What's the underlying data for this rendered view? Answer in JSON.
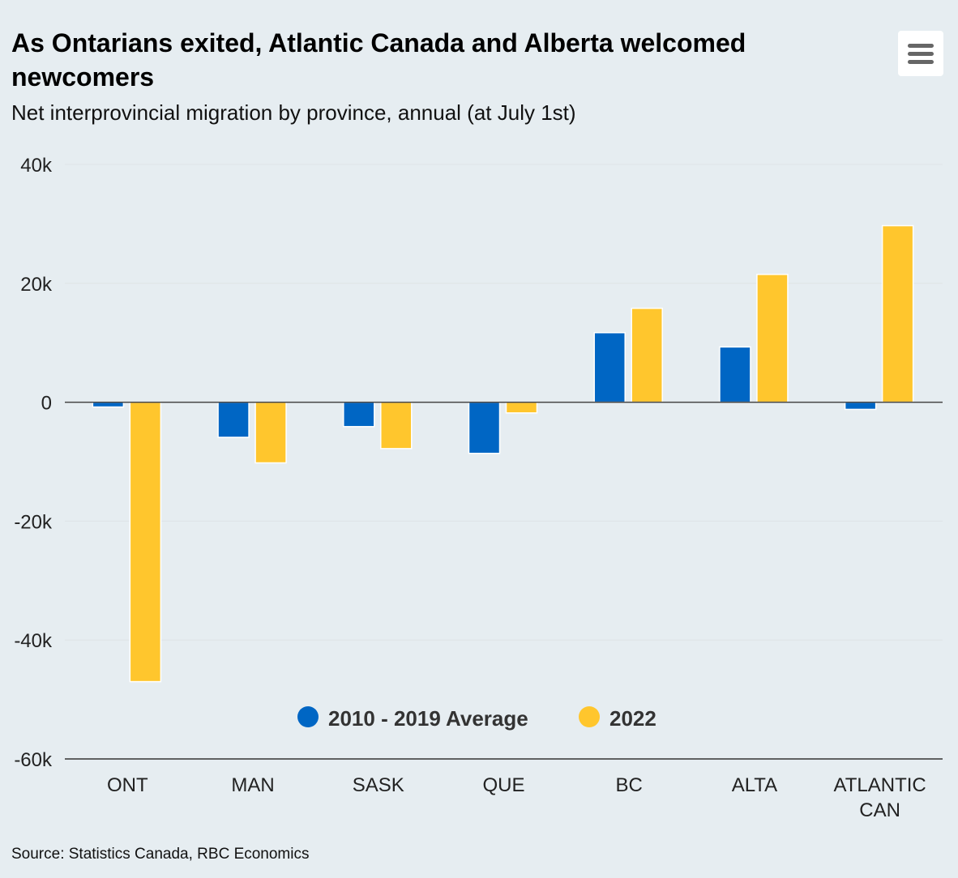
{
  "title": "As Ontarians exited, Atlantic Canada and Alberta welcomed newcomers",
  "subtitle": "Net interprovincial migration by province, annual (at July 1st)",
  "source": "Source: Statistics Canada, RBC Economics",
  "menu_icon": "hamburger-menu-icon",
  "chart_data": {
    "type": "bar",
    "title": "As Ontarians exited, Atlantic Canada and Alberta welcomed newcomers",
    "categories": [
      [
        "ONT"
      ],
      [
        "MAN"
      ],
      [
        "SASK"
      ],
      [
        "QUE"
      ],
      [
        "BC"
      ],
      [
        "ALTA"
      ],
      [
        "ATLANTIC",
        "CAN"
      ]
    ],
    "series": [
      {
        "name": "2010 - 2019 Average",
        "color": "#0066c4",
        "values": [
          -800,
          -5900,
          -4100,
          -8600,
          11700,
          9300,
          -1200
        ]
      },
      {
        "name": "2022",
        "color": "#ffc62d",
        "values": [
          -47000,
          -10200,
          -7800,
          -1800,
          15800,
          21500,
          29700
        ]
      }
    ],
    "ylim": [
      -60000,
      40000
    ],
    "yticks": [
      40000,
      20000,
      0,
      -20000,
      -40000,
      -60000
    ],
    "ytick_labels": [
      "40k",
      "20k",
      "0",
      "-20k",
      "-40k",
      "-60k"
    ],
    "legend": "bottom-center-inside",
    "grid": true
  }
}
